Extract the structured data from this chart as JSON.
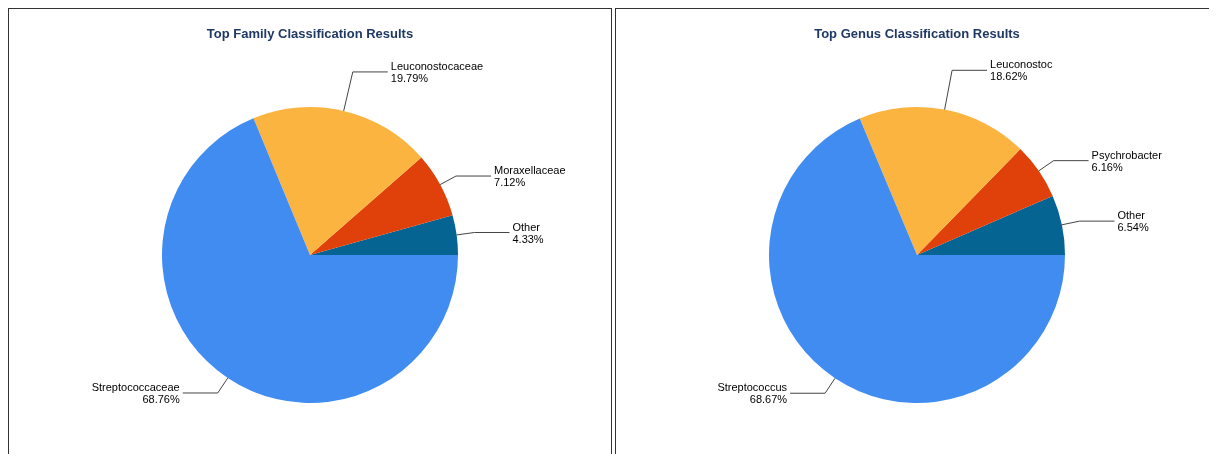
{
  "chart_data": [
    {
      "type": "pie",
      "title": "Top Family Classification Results",
      "categories": [
        "Other",
        "Moraxellaceae",
        "Leuconostocaceae",
        "Streptococcaceae"
      ],
      "values": [
        4.33,
        7.12,
        19.79,
        68.76
      ],
      "colors": [
        "#056492",
        "#e0400a",
        "#fcb441",
        "#418cf0"
      ],
      "value_labels": [
        "4.33%",
        "7.12%",
        "19.79%",
        "68.76%"
      ]
    },
    {
      "type": "pie",
      "title": "Top Genus Classification Results",
      "categories": [
        "Other",
        "Psychrobacter",
        "Leuconostoc",
        "Streptococcus"
      ],
      "values": [
        6.54,
        6.16,
        18.62,
        68.67
      ],
      "colors": [
        "#056492",
        "#e0400a",
        "#fcb441",
        "#418cf0"
      ],
      "value_labels": [
        "6.54%",
        "6.16%",
        "18.62%",
        "68.67%"
      ]
    }
  ]
}
